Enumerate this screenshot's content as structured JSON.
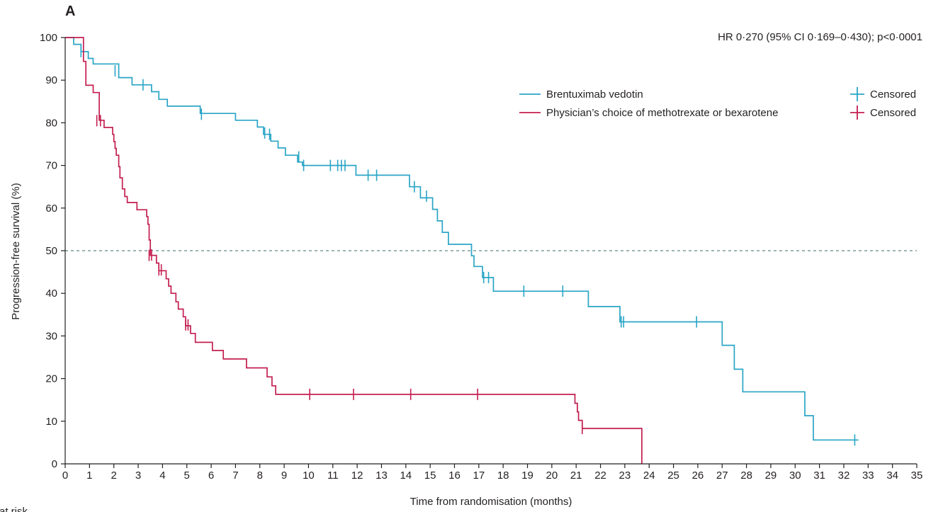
{
  "chart_data": {
    "type": "line",
    "panel_label": "A",
    "hr_annotation": "HR 0·270 (95% CI 0·169–0·430); p<0·0001",
    "xlabel": "Time from randomisation (months)",
    "ylabel": "Progression-free survival (%)",
    "xlim": [
      0,
      35
    ],
    "ylim": [
      0,
      100
    ],
    "x_ticks": [
      "0",
      "1",
      "2",
      "3",
      "4",
      "5",
      "6",
      "7",
      "8",
      "9",
      "10",
      "11",
      "12",
      "13",
      "14",
      "15",
      "16",
      "17",
      "18",
      "19",
      "20",
      "21",
      "22",
      "23",
      "24",
      "25",
      "26",
      "27",
      "28",
      "29",
      "30",
      "31",
      "32",
      "33",
      "34",
      "35"
    ],
    "y_ticks": [
      "0",
      "10",
      "20",
      "30",
      "40",
      "50",
      "60",
      "70",
      "80",
      "90",
      "100"
    ],
    "reference_line_y": 50,
    "grid": false,
    "legend_placement": "top-right",
    "censored_label": "Censored",
    "bottom_cut_text": "at risk",
    "series": [
      {
        "name": "Brentuximab vedotin",
        "color": "#2aa5c6",
        "steps": [
          [
            0,
            100
          ],
          [
            0.35,
            100
          ],
          [
            0.35,
            98.4
          ],
          [
            0.65,
            98.4
          ],
          [
            0.65,
            96.7
          ],
          [
            0.95,
            96.7
          ],
          [
            0.95,
            95.1
          ],
          [
            1.15,
            95.1
          ],
          [
            1.15,
            93.8
          ],
          [
            2.2,
            93.8
          ],
          [
            2.2,
            90.6
          ],
          [
            2.75,
            90.6
          ],
          [
            2.75,
            88.9
          ],
          [
            3.55,
            88.9
          ],
          [
            3.55,
            87.3
          ],
          [
            3.85,
            87.3
          ],
          [
            3.85,
            85.5
          ],
          [
            4.2,
            85.5
          ],
          [
            4.2,
            83.9
          ],
          [
            5.55,
            83.9
          ],
          [
            5.55,
            82.2
          ],
          [
            7.0,
            82.2
          ],
          [
            7.0,
            80.6
          ],
          [
            7.9,
            80.6
          ],
          [
            7.9,
            79.0
          ],
          [
            8.15,
            79.0
          ],
          [
            8.15,
            77.3
          ],
          [
            8.45,
            77.3
          ],
          [
            8.45,
            75.7
          ],
          [
            8.75,
            75.7
          ],
          [
            8.75,
            74.1
          ],
          [
            9.05,
            74.1
          ],
          [
            9.05,
            72.4
          ],
          [
            9.55,
            72.4
          ],
          [
            9.55,
            70.8
          ],
          [
            9.75,
            70.8
          ],
          [
            9.75,
            70.0
          ],
          [
            11.95,
            70.0
          ],
          [
            11.95,
            67.7
          ],
          [
            14.15,
            67.7
          ],
          [
            14.15,
            65.0
          ],
          [
            14.6,
            65.0
          ],
          [
            14.6,
            62.4
          ],
          [
            15.1,
            62.4
          ],
          [
            15.1,
            59.7
          ],
          [
            15.3,
            59.7
          ],
          [
            15.3,
            57.0
          ],
          [
            15.5,
            57.0
          ],
          [
            15.5,
            54.3
          ],
          [
            15.75,
            54.3
          ],
          [
            15.75,
            51.5
          ],
          [
            16.7,
            51.5
          ],
          [
            16.7,
            48.8
          ],
          [
            16.8,
            48.8
          ],
          [
            16.8,
            46.3
          ],
          [
            17.15,
            46.3
          ],
          [
            17.15,
            43.7
          ],
          [
            17.6,
            43.7
          ],
          [
            17.6,
            40.5
          ],
          [
            21.5,
            40.5
          ],
          [
            21.5,
            36.9
          ],
          [
            22.8,
            36.9
          ],
          [
            22.8,
            33.3
          ],
          [
            27.0,
            33.3
          ],
          [
            27.0,
            27.8
          ],
          [
            27.5,
            27.8
          ],
          [
            27.5,
            22.2
          ],
          [
            27.85,
            22.2
          ],
          [
            27.85,
            16.9
          ],
          [
            30.4,
            16.9
          ],
          [
            30.4,
            11.3
          ],
          [
            30.75,
            11.3
          ],
          [
            30.75,
            5.6
          ],
          [
            32.6,
            5.6
          ]
        ],
        "censored": [
          [
            0.65,
            96.7
          ],
          [
            2.05,
            92.2
          ],
          [
            3.2,
            88.9
          ],
          [
            5.6,
            82.0
          ],
          [
            8.2,
            77.6
          ],
          [
            8.4,
            77.3
          ],
          [
            9.6,
            72.0
          ],
          [
            9.8,
            70.0
          ],
          [
            10.9,
            70.0
          ],
          [
            11.2,
            70.0
          ],
          [
            11.35,
            70.0
          ],
          [
            11.5,
            70.0
          ],
          [
            12.45,
            67.7
          ],
          [
            12.8,
            67.7
          ],
          [
            14.35,
            65.0
          ],
          [
            14.85,
            62.8
          ],
          [
            17.2,
            43.7
          ],
          [
            17.4,
            43.7
          ],
          [
            18.85,
            40.5
          ],
          [
            20.45,
            40.5
          ],
          [
            22.85,
            33.3
          ],
          [
            22.95,
            33.3
          ],
          [
            25.95,
            33.3
          ],
          [
            32.45,
            5.6
          ]
        ]
      },
      {
        "name": "Physician’s choice of methotrexate or bexarotene",
        "color": "#c41e50",
        "steps": [
          [
            0,
            100
          ],
          [
            0.75,
            100
          ],
          [
            0.75,
            94.4
          ],
          [
            0.85,
            94.4
          ],
          [
            0.85,
            88.8
          ],
          [
            1.15,
            88.8
          ],
          [
            1.15,
            87.1
          ],
          [
            1.4,
            87.1
          ],
          [
            1.4,
            80.6
          ],
          [
            1.6,
            80.6
          ],
          [
            1.6,
            78.9
          ],
          [
            1.95,
            78.9
          ],
          [
            1.95,
            77.3
          ],
          [
            2.0,
            77.3
          ],
          [
            2.0,
            75.6
          ],
          [
            2.05,
            75.6
          ],
          [
            2.05,
            74.0
          ],
          [
            2.1,
            74.0
          ],
          [
            2.1,
            72.4
          ],
          [
            2.2,
            72.4
          ],
          [
            2.2,
            69.7
          ],
          [
            2.25,
            69.7
          ],
          [
            2.25,
            67.1
          ],
          [
            2.35,
            67.1
          ],
          [
            2.35,
            64.5
          ],
          [
            2.45,
            64.5
          ],
          [
            2.45,
            62.7
          ],
          [
            2.55,
            62.7
          ],
          [
            2.55,
            61.3
          ],
          [
            2.95,
            61.3
          ],
          [
            2.95,
            59.6
          ],
          [
            3.35,
            59.6
          ],
          [
            3.35,
            58.0
          ],
          [
            3.4,
            58.0
          ],
          [
            3.4,
            56.2
          ],
          [
            3.45,
            56.2
          ],
          [
            3.45,
            52.5
          ],
          [
            3.5,
            52.5
          ],
          [
            3.5,
            48.9
          ],
          [
            3.75,
            48.9
          ],
          [
            3.75,
            47.1
          ],
          [
            3.85,
            47.1
          ],
          [
            3.85,
            45.3
          ],
          [
            4.15,
            45.3
          ],
          [
            4.15,
            43.4
          ],
          [
            4.25,
            43.4
          ],
          [
            4.25,
            41.7
          ],
          [
            4.35,
            41.7
          ],
          [
            4.35,
            40.0
          ],
          [
            4.55,
            40.0
          ],
          [
            4.55,
            38.0
          ],
          [
            4.65,
            38.0
          ],
          [
            4.65,
            36.3
          ],
          [
            4.85,
            36.3
          ],
          [
            4.85,
            34.5
          ],
          [
            4.95,
            34.5
          ],
          [
            4.95,
            32.4
          ],
          [
            5.15,
            32.4
          ],
          [
            5.15,
            30.6
          ],
          [
            5.35,
            30.6
          ],
          [
            5.35,
            28.5
          ],
          [
            6.05,
            28.5
          ],
          [
            6.05,
            26.6
          ],
          [
            6.5,
            26.6
          ],
          [
            6.5,
            24.6
          ],
          [
            7.45,
            24.6
          ],
          [
            7.45,
            22.5
          ],
          [
            8.3,
            22.5
          ],
          [
            8.3,
            20.4
          ],
          [
            8.5,
            20.4
          ],
          [
            8.5,
            18.3
          ],
          [
            8.65,
            18.3
          ],
          [
            8.65,
            16.3
          ],
          [
            20.95,
            16.3
          ],
          [
            20.95,
            14.2
          ],
          [
            21.05,
            14.2
          ],
          [
            21.05,
            12.2
          ],
          [
            21.1,
            12.2
          ],
          [
            21.1,
            10.2
          ],
          [
            21.25,
            10.2
          ],
          [
            21.25,
            8.3
          ],
          [
            23.7,
            8.3
          ],
          [
            23.7,
            0
          ]
        ],
        "censored": [
          [
            1.3,
            80.5
          ],
          [
            1.45,
            80.5
          ],
          [
            3.45,
            48.9
          ],
          [
            3.55,
            49.0
          ],
          [
            3.85,
            45.5
          ],
          [
            3.95,
            45.5
          ],
          [
            4.95,
            32.6
          ],
          [
            5.05,
            32.6
          ],
          [
            10.05,
            16.3
          ],
          [
            11.85,
            16.3
          ],
          [
            14.2,
            16.3
          ],
          [
            16.95,
            16.3
          ],
          [
            21.25,
            8.3
          ]
        ]
      }
    ]
  }
}
